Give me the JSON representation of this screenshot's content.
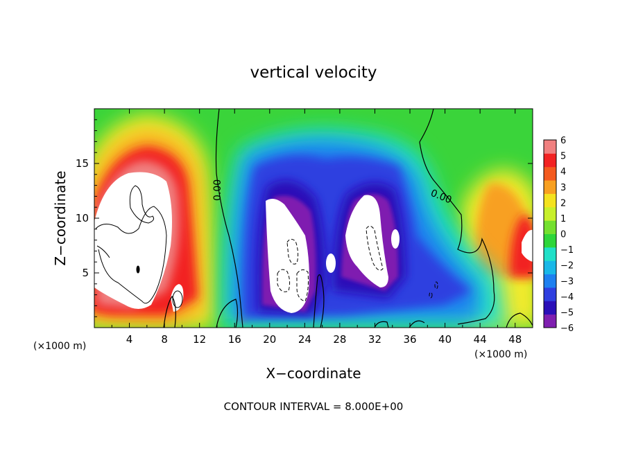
{
  "chart_data": {
    "type": "heatmap",
    "title": "vertical velocity",
    "xlabel": "X−coordinate",
    "ylabel": "Z−coordinate",
    "x_unit_left": "(×1000 m)",
    "x_unit_right": "(×1000 m)",
    "xlim": [
      0,
      50
    ],
    "ylim": [
      0,
      20
    ],
    "x_ticks": [
      "4",
      "8",
      "12",
      "16",
      "20",
      "24",
      "28",
      "32",
      "36",
      "40",
      "44",
      "48"
    ],
    "y_ticks": [
      "5",
      "10",
      "15"
    ],
    "colorbar": {
      "ticks": [
        "6",
        "5",
        "4",
        "3",
        "2",
        "1",
        "0",
        "−1",
        "−2",
        "−3",
        "−4",
        "−5",
        "−6"
      ],
      "range": [
        -6,
        6
      ],
      "colors": [
        "#7f1fb0",
        "#2a0fb8",
        "#2f3fe0",
        "#1e80f0",
        "#19b8e8",
        "#20e0c8",
        "#2ed63a",
        "#74e02e",
        "#c8f02a",
        "#f4e21e",
        "#f8a020",
        "#f45a1e",
        "#f22222",
        "#f08080"
      ]
    },
    "contour_label": "0.00",
    "contour_interval_text": "CONTOUR INTERVAL = 8.000E+00",
    "features": [
      {
        "kind": "updraft",
        "x": 6,
        "z": 10,
        "value": 6
      },
      {
        "kind": "updraft",
        "x": 48,
        "z": 8,
        "value": 5
      },
      {
        "kind": "downdraft",
        "x": 22,
        "z": 8,
        "value": -6
      },
      {
        "kind": "downdraft",
        "x": 31,
        "z": 9,
        "value": -6
      }
    ]
  }
}
